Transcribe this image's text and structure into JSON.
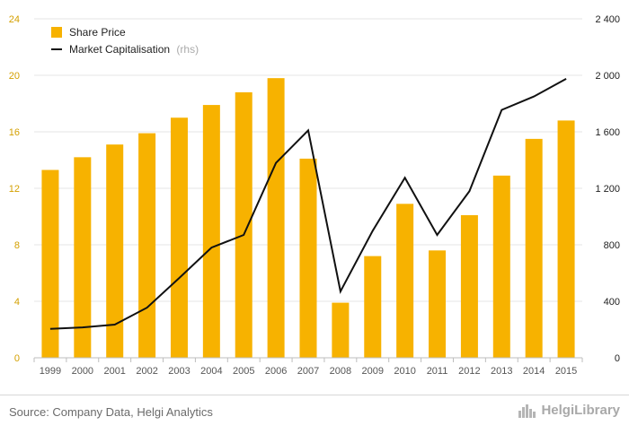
{
  "chart_data": {
    "type": "bar",
    "categories": [
      "1999",
      "2000",
      "2001",
      "2002",
      "2003",
      "2004",
      "2005",
      "2006",
      "2007",
      "2008",
      "2009",
      "2010",
      "2011",
      "2012",
      "2013",
      "2014",
      "2015"
    ],
    "series": [
      {
        "name": "Share Price",
        "type": "bar",
        "axis": "left",
        "color": "#f7b200",
        "values": [
          13.3,
          14.2,
          15.1,
          15.9,
          17.0,
          17.9,
          18.8,
          19.8,
          14.1,
          3.9,
          7.2,
          10.9,
          7.6,
          10.1,
          12.9,
          15.5,
          16.8
        ]
      },
      {
        "name": "Market Capitalisation",
        "name_note": "(rhs)",
        "type": "line",
        "axis": "right",
        "color": "#111111",
        "values": [
          205,
          215,
          235,
          355,
          565,
          780,
          870,
          1380,
          1610,
          470,
          900,
          1275,
          870,
          1180,
          1755,
          1850,
          1975
        ]
      }
    ],
    "y_left": {
      "min": 0,
      "max": 24,
      "ticks": [
        "0",
        "4",
        "8",
        "12",
        "16",
        "20",
        "24"
      ],
      "tick_color": "#d4a000"
    },
    "y_right": {
      "min": 0,
      "max": 2400,
      "ticks": [
        "0",
        "400",
        "800",
        "1 200",
        "1 600",
        "2 000",
        "2 400"
      ]
    },
    "grid": true,
    "legend_position": "top-left"
  },
  "footer": {
    "source": "Source: Company Data, Helgi Analytics",
    "brand": "HelgiLibrary",
    "brand_icon": "city-skyline-icon"
  }
}
